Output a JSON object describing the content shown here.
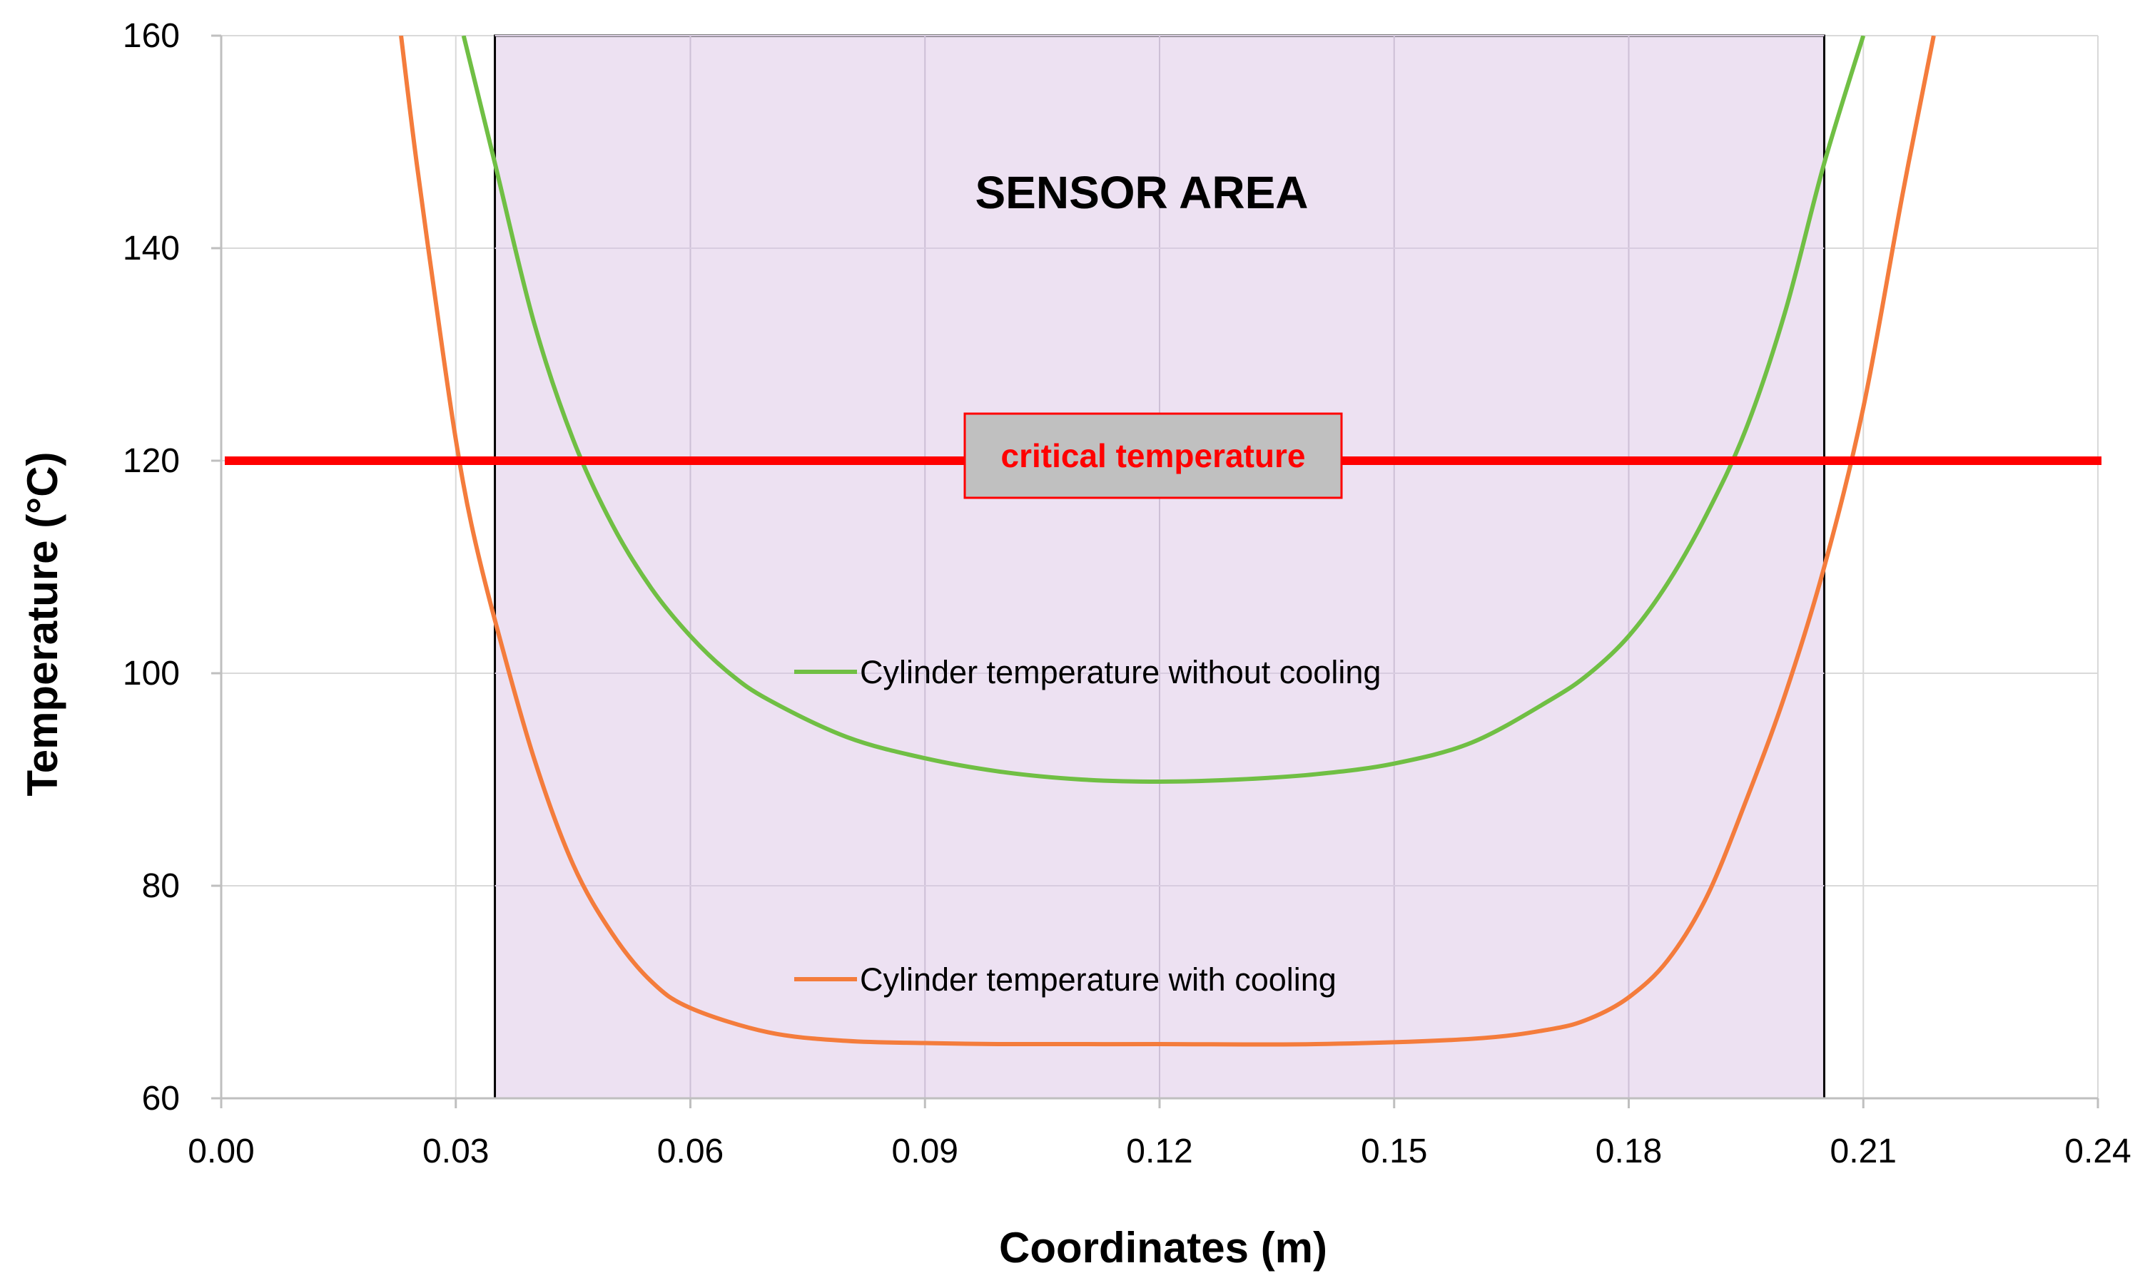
{
  "chart_data": {
    "type": "line",
    "xlabel": "Coordinates (m)",
    "ylabel": "Temperature (°C)",
    "xlim": [
      0,
      0.24
    ],
    "ylim": [
      60,
      160
    ],
    "x_ticks": [
      "0.00",
      "0.03",
      "0.06",
      "0.09",
      "0.12",
      "0.15",
      "0.18",
      "0.21",
      "0.24"
    ],
    "y_ticks": [
      "60",
      "80",
      "100",
      "120",
      "140",
      "160"
    ],
    "grid": true,
    "sensor_area": {
      "label": "SENSOR AREA",
      "x_range": [
        0.035,
        0.205
      ],
      "fill": "#ede1f2",
      "border": "#000000"
    },
    "critical_temperature": {
      "label": "critical temperature",
      "value": 120,
      "color": "#ff0000",
      "label_box_fill": "#c0c0c0"
    },
    "series": [
      {
        "name": "Cylinder temperature without cooling",
        "color": "#70bf44",
        "x": [
          0.031,
          0.035,
          0.04,
          0.045,
          0.05,
          0.055,
          0.06,
          0.065,
          0.07,
          0.08,
          0.09,
          0.1,
          0.11,
          0.12,
          0.13,
          0.14,
          0.15,
          0.16,
          0.17,
          0.175,
          0.18,
          0.185,
          0.19,
          0.195,
          0.2,
          0.205,
          0.21
        ],
        "y": [
          160,
          148,
          133,
          122,
          114,
          108,
          103.5,
          100,
          97.5,
          94,
          92,
          90.7,
          90,
          89.8,
          90,
          90.5,
          91.5,
          93.5,
          97.5,
          100,
          103.5,
          108.5,
          115,
          123,
          134,
          148,
          160
        ]
      },
      {
        "name": "Cylinder temperature with cooling",
        "color": "#f47c3c",
        "x": [
          0.023,
          0.025,
          0.028,
          0.03,
          0.032,
          0.035,
          0.04,
          0.045,
          0.05,
          0.055,
          0.06,
          0.07,
          0.08,
          0.09,
          0.1,
          0.12,
          0.14,
          0.16,
          0.17,
          0.175,
          0.18,
          0.185,
          0.19,
          0.195,
          0.2,
          0.205,
          0.21,
          0.215,
          0.219
        ],
        "y": [
          160,
          148,
          132,
          122,
          114,
          105,
          92,
          82,
          75.5,
          71,
          68.5,
          66.2,
          65.4,
          65.2,
          65.1,
          65.1,
          65.1,
          65.6,
          66.5,
          67.5,
          69.5,
          73,
          79,
          88,
          98,
          110,
          125,
          145,
          160
        ]
      }
    ]
  }
}
